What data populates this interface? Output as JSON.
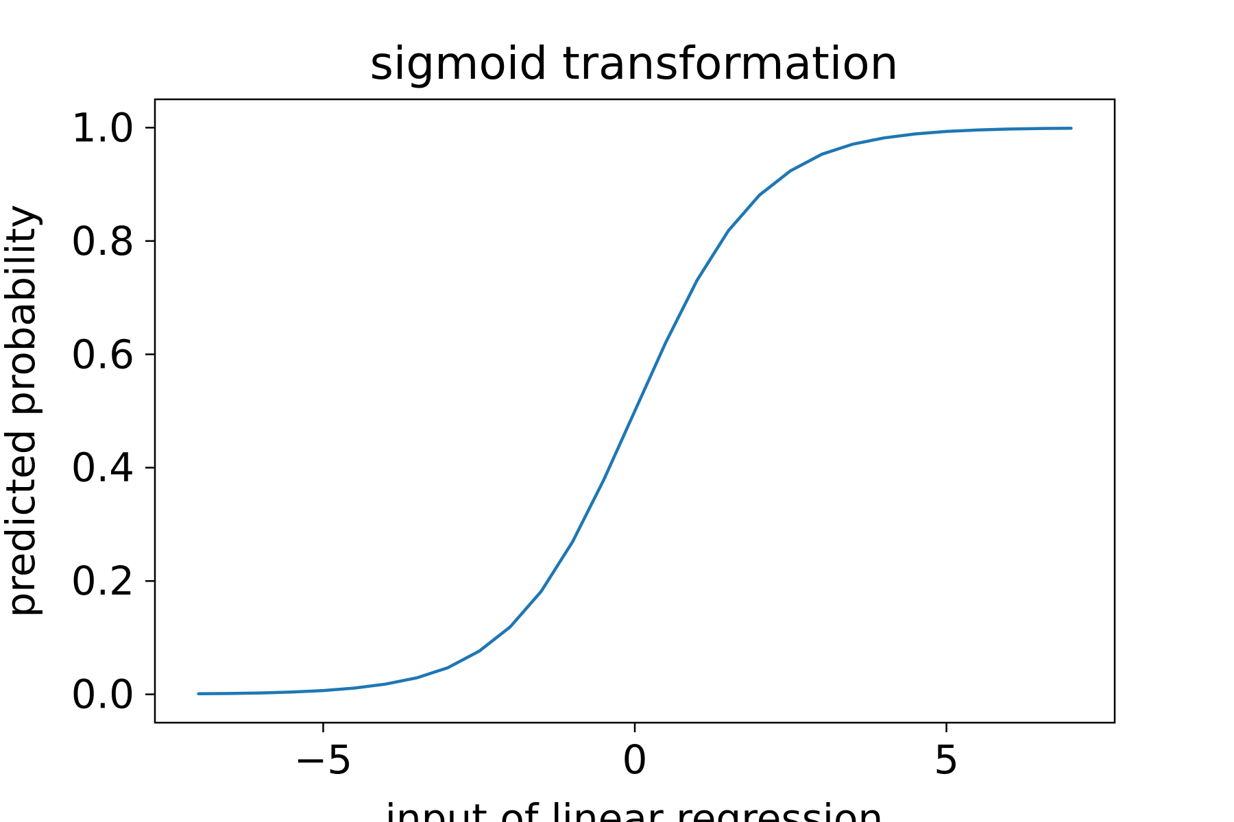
{
  "chart_data": {
    "type": "line",
    "title": "sigmoid transformation",
    "xlabel": "input of linear regression",
    "ylabel": "predicted probability",
    "xlim": [
      -7.7,
      7.7
    ],
    "ylim": [
      -0.05,
      1.05
    ],
    "xticks": [
      -5,
      0,
      5
    ],
    "xtick_labels": [
      "−5",
      "0",
      "5"
    ],
    "yticks": [
      0.0,
      0.2,
      0.4,
      0.6,
      0.8,
      1.0
    ],
    "ytick_labels": [
      "0.0",
      "0.2",
      "0.4",
      "0.6",
      "0.8",
      "1.0"
    ],
    "grid": false,
    "legend": "none",
    "line_color": "#1f77b4",
    "series": [
      {
        "function": "sigmoid",
        "x": [
          -7,
          -6.5,
          -6,
          -5.5,
          -5,
          -4.5,
          -4,
          -3.5,
          -3,
          -2.5,
          -2,
          -1.5,
          -1,
          -0.5,
          0,
          0.5,
          1,
          1.5,
          2,
          2.5,
          3,
          3.5,
          4,
          4.5,
          5,
          5.5,
          6,
          6.5,
          7
        ],
        "y": [
          0.001,
          0.0015,
          0.0025,
          0.004,
          0.0067,
          0.011,
          0.018,
          0.029,
          0.047,
          0.076,
          0.119,
          0.182,
          0.269,
          0.378,
          0.5,
          0.622,
          0.731,
          0.818,
          0.881,
          0.924,
          0.953,
          0.971,
          0.982,
          0.989,
          0.9933,
          0.996,
          0.9975,
          0.9985,
          0.999
        ]
      }
    ]
  }
}
